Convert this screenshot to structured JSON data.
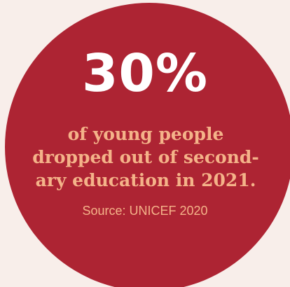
{
  "stat": {
    "value": "30%",
    "lines": [
      "of young people",
      "dropped out of second-",
      "ary education in 2021."
    ],
    "source": "Source: UNICEF 2020"
  },
  "colors": {
    "background": "#f8eeea",
    "circle": "#ad2433",
    "stat_text": "#ffffff",
    "accent_text": "#f4b389"
  }
}
